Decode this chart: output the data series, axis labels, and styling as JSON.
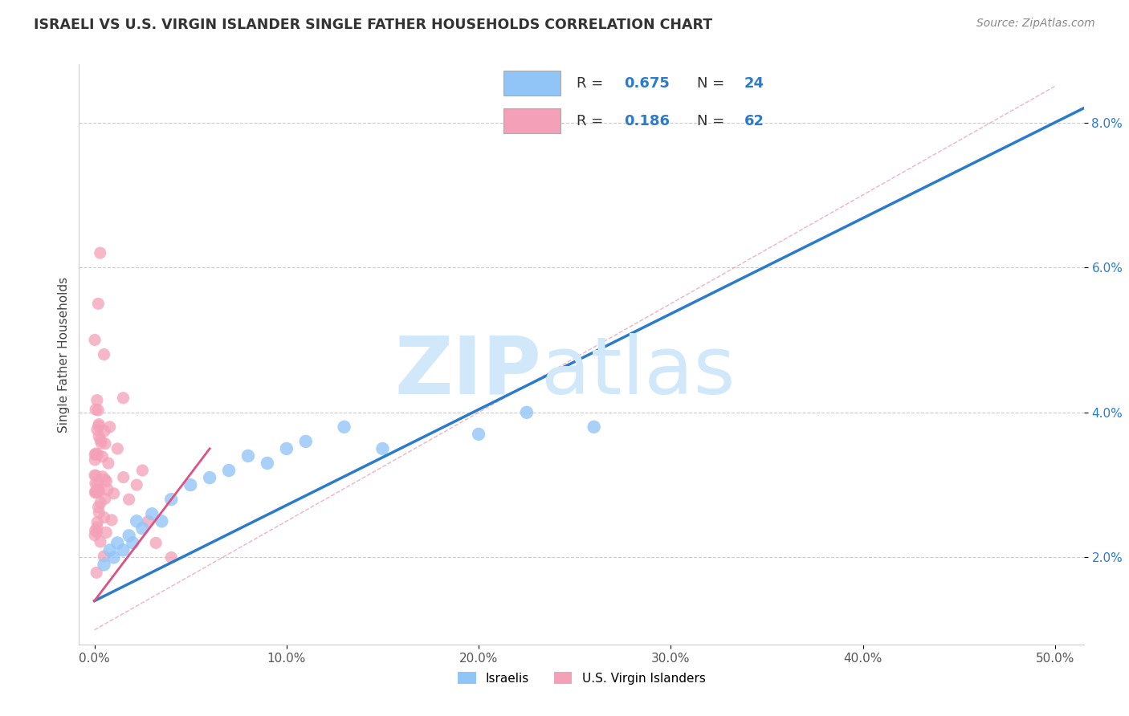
{
  "title": "ISRAELI VS U.S. VIRGIN ISLANDER SINGLE FATHER HOUSEHOLDS CORRELATION CHART",
  "source": "Source: ZipAtlas.com",
  "ylabel": "Single Father Households",
  "xlabel_ticks": [
    "0.0%",
    "10.0%",
    "20.0%",
    "30.0%",
    "40.0%",
    "50.0%"
  ],
  "xlabel_vals": [
    0.0,
    0.1,
    0.2,
    0.3,
    0.4,
    0.5
  ],
  "ylabel_ticks": [
    "2.0%",
    "4.0%",
    "6.0%",
    "8.0%"
  ],
  "ylabel_vals": [
    0.02,
    0.04,
    0.06,
    0.08
  ],
  "xlim": [
    -0.008,
    0.515
  ],
  "ylim": [
    0.008,
    0.088
  ],
  "R_israeli": 0.675,
  "N_israeli": 24,
  "R_virgin": 0.186,
  "N_virgin": 62,
  "israeli_color": "#92C5F7",
  "virgin_color": "#F4A0B8",
  "trend_blue": "#2B7BCC",
  "trend_pink": "#E05080",
  "watermark_zip": "ZIP",
  "watermark_atlas": "atlas",
  "watermark_color": "#D0E8FA",
  "background_color": "#FFFFFF",
  "grid_color": "#CCCCCC",
  "yaxis_label_color": "#2B7BCC",
  "title_color": "#333333",
  "source_color": "#888888"
}
